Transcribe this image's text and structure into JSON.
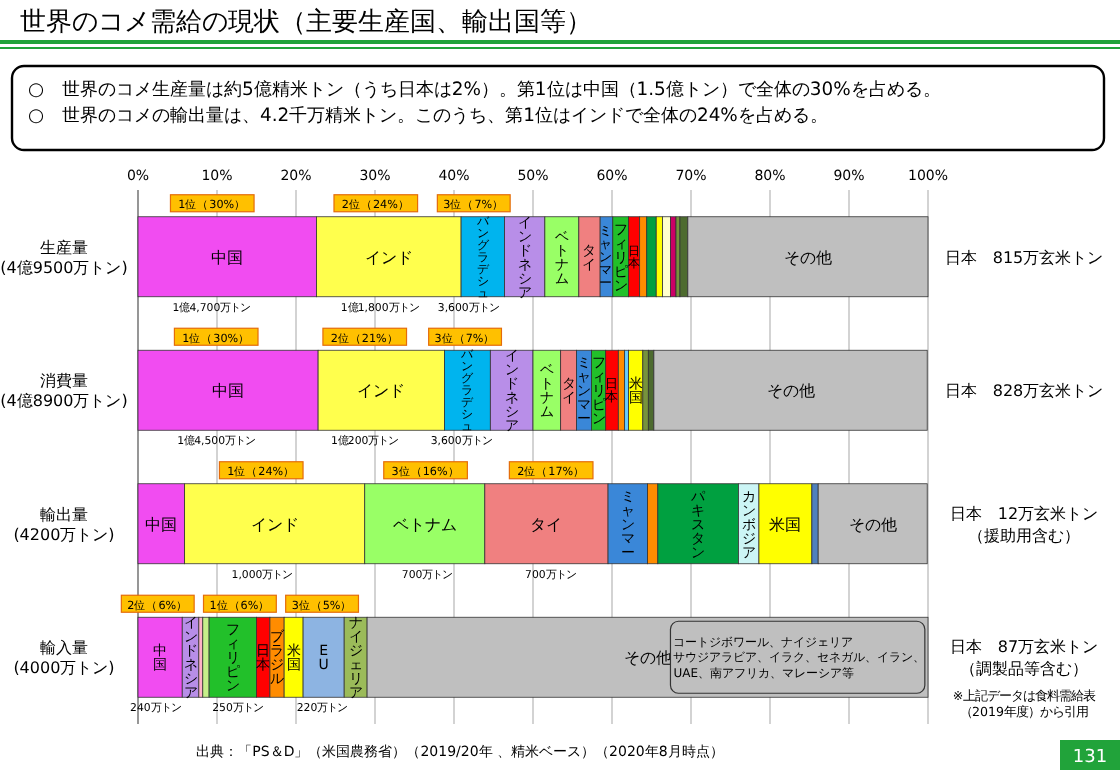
{
  "chart_data": {
    "type": "bar",
    "orientation": "horizontal",
    "stacked": true,
    "title": "世界のコメ需給の現状（主要生産国、輸出国等）",
    "subtitle": "○　世界のコメ生産量は約5億精米トン（うち日本は2%）。第1位は中国（1.5億トン）で全体の30%を占める。\n○　世界のコメの輸出量は、4.2千万精米トン。このうち、第1位はインドで全体の24%を占める。",
    "categories": [
      "生産量\n(4億9500万トン)",
      "消費量\n(4億8900万トン)",
      "輸出量\n(4200万トン)",
      "輸入量\n(4000万トン)"
    ],
    "xlim": [
      0,
      100
    ],
    "xticks": [
      {
        "value": 0,
        "label": "0%"
      },
      {
        "value": 10,
        "label": "10%"
      },
      {
        "value": 20,
        "label": "20%"
      },
      {
        "value": 30,
        "label": "30%"
      },
      {
        "value": 40,
        "label": "40%"
      },
      {
        "value": 50,
        "label": "50%"
      },
      {
        "value": 60,
        "label": "60%"
      },
      {
        "value": 70,
        "label": "70%"
      },
      {
        "value": 80,
        "label": "80%"
      },
      {
        "value": 90,
        "label": "90%"
      },
      {
        "value": 100,
        "label": "100%"
      }
    ],
    "grid": "x",
    "series": [
      {
        "name": "中国",
        "color": "#f14cf1",
        "values": [
          22.6,
          22.8,
          5.9,
          5.6
        ]
      },
      {
        "name": "インド",
        "color": "#ffff4d",
        "values": [
          18.3,
          16.0,
          22.8,
          null
        ]
      },
      {
        "name": "バングラデシュ",
        "color": "#00b4ee",
        "values": [
          5.5,
          5.8,
          null,
          null
        ]
      },
      {
        "name": "インドネシア",
        "color": "#b88ee8",
        "values": [
          5.1,
          5.4,
          null,
          2.1
        ]
      },
      {
        "color": "#ffb3c6",
        "values": [
          null,
          null,
          null,
          0.5
        ]
      },
      {
        "color": "#c6f08a",
        "values": [
          null,
          null,
          null,
          0.8
        ]
      },
      {
        "name": "ベトナム",
        "color": "#99ff66",
        "values": [
          4.3,
          3.5,
          15.2,
          null
        ]
      },
      {
        "name": "タイ",
        "color": "#f08080",
        "values": [
          2.7,
          2.0,
          15.6,
          null
        ]
      },
      {
        "name": "ミャンマー",
        "color": "#3a87d8",
        "values": [
          1.6,
          1.9,
          5.0,
          null
        ]
      },
      {
        "name": "フィリピン",
        "color": "#22c02a",
        "values": [
          2.0,
          1.8,
          null,
          6.0
        ]
      },
      {
        "name": "日本",
        "color": "#ff0000",
        "values": [
          1.4,
          1.6,
          null,
          1.7
        ]
      },
      {
        "name": "ブラジル",
        "color": "#ff8c00",
        "values": [
          0.9,
          0.8,
          1.3,
          1.8
        ]
      },
      {
        "name": "パキスタン",
        "color": "#00a040",
        "values": [
          1.2,
          null,
          10.2,
          null
        ]
      },
      {
        "name": "カンボジア",
        "color": "#ccf5f5",
        "values": [
          null,
          null,
          2.6,
          null
        ]
      },
      {
        "color": "#66ccff",
        "values": [
          null,
          0.5,
          null,
          null
        ]
      },
      {
        "name": "米国",
        "color": "#ffff00",
        "values": [
          0.8,
          1.8,
          6.7,
          2.4
        ]
      },
      {
        "color": "#ffffcc",
        "values": [
          1.0,
          null,
          null,
          null
        ]
      },
      {
        "color": "#4f81bd",
        "values": [
          null,
          null,
          0.8,
          null
        ]
      },
      {
        "name": "EU",
        "color": "#8db4e2",
        "values": [
          null,
          null,
          null,
          5.2
        ]
      },
      {
        "name": "ナイジェリア",
        "color": "#9bbb59",
        "values": [
          null,
          null,
          null,
          2.9
        ]
      },
      {
        "color": "#cc0066",
        "values": [
          0.7,
          null,
          null,
          null
        ]
      },
      {
        "color": "#77933c",
        "values": [
          0.5,
          0.7,
          null,
          null
        ]
      },
      {
        "color": "#4d6b2f",
        "values": [
          1.0,
          0.7,
          null,
          null
        ]
      },
      {
        "name": "その他",
        "color": "#bfbfbf",
        "values": [
          30.4,
          34.6,
          13.8,
          71.0
        ]
      }
    ],
    "annotations": [
      "1位（30%）",
      "1億4,700万トン",
      "2位（24%）",
      "1億1,800万トン",
      "3位（7%）",
      "3,600万トン",
      "1位（30%）",
      "1億4,500万トン",
      "2位（21%）",
      "1億200万トン",
      "3位（7%）",
      "3,600万トン",
      "1位（24%）",
      "1,000万トン",
      "3位（16%）",
      "700万トン",
      "2位（17%）",
      "700万トン",
      "2位（6%）",
      "240万トン",
      "1位（6%）",
      "250万トン",
      "3位（5%）",
      "220万トン",
      "コートジボワール、ナイジェリアサウジアラビア、イラク、セネガル、イラン、UAE、南アフリカ、マレーシア等",
      "日本　815万玄米トン",
      "日本　828万玄米トン",
      "日本　12万玄米トン（援助用含む）",
      "日本　87万玄米トン（調製品等含む）",
      "※上記データは食料需給表（2019年度）から引用",
      "出典：「PS＆D」（米国農務省）（2019/20年 、精米ベース）（2020年8月時点）",
      "131"
    ]
  }
}
